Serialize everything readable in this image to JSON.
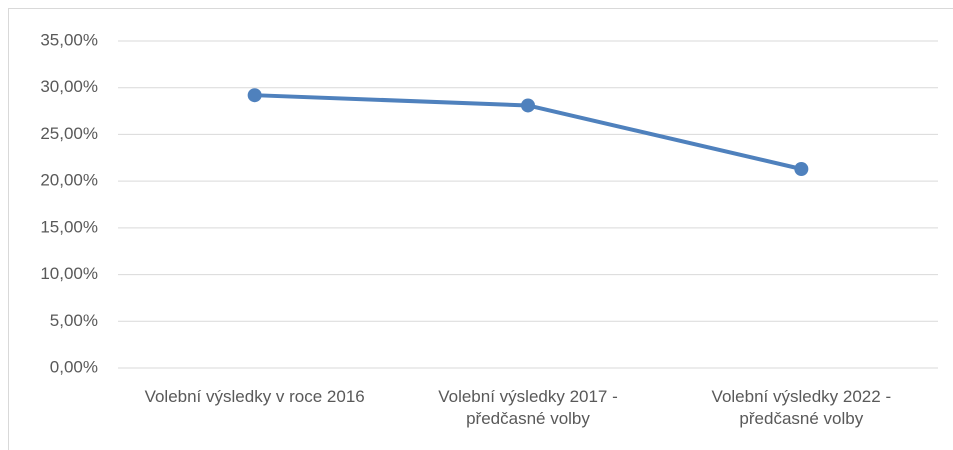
{
  "chart_data": {
    "type": "line",
    "categories": [
      "Volební výsledky v roce 2016",
      "Volební výsledky 2017 - předčasné volby",
      "Volební výsledky 2022 - předčasné volby"
    ],
    "series": [
      {
        "name": null,
        "color": "#4f81bd",
        "values": [
          29.2,
          28.1,
          21.3
        ]
      }
    ],
    "ylim": [
      0,
      35
    ],
    "yticks": [
      {
        "value": 0,
        "label": "0,00%"
      },
      {
        "value": 5,
        "label": "5,00%"
      },
      {
        "value": 10,
        "label": "10,00%"
      },
      {
        "value": 15,
        "label": "15,00%"
      },
      {
        "value": 20,
        "label": "20,00%"
      },
      {
        "value": 25,
        "label": "25,00%"
      },
      {
        "value": 30,
        "label": "30,00%"
      },
      {
        "value": 35,
        "label": "35,00%"
      }
    ],
    "grid": true
  }
}
